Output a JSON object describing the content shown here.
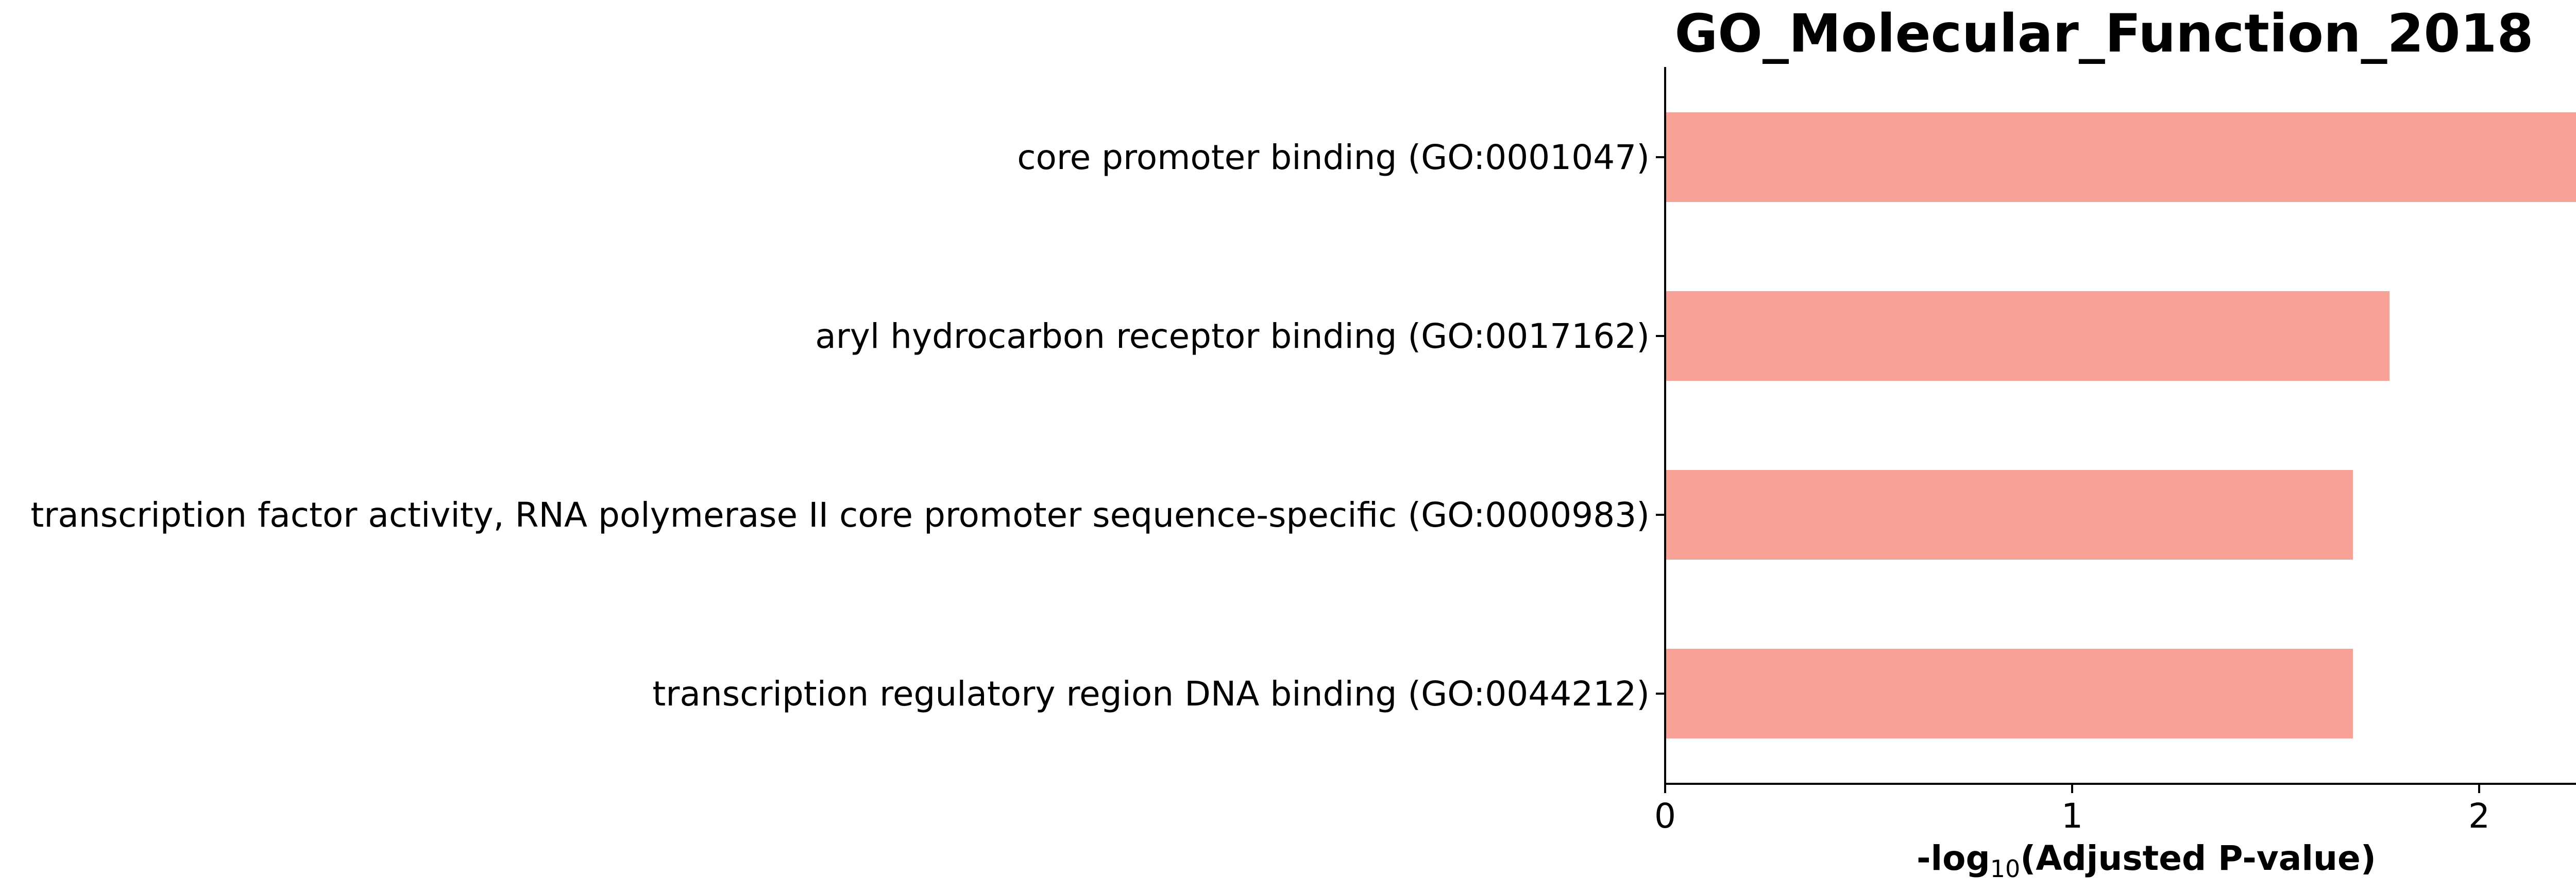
{
  "chart_data": {
    "type": "bar",
    "orientation": "horizontal",
    "title": "GO_Molecular_Function_2018",
    "xlabel": {
      "prefix": "-log",
      "subscript": "10",
      "suffix": "(Adjusted P-value)"
    },
    "ylabel": "",
    "categories": [
      "core promoter binding (GO:0001047)",
      "aryl hydrocarbon receptor binding (GO:0017162)",
      "transcription factor activity, RNA polymerase II core promoter sequence-specific (GO:0000983)",
      "transcription regulatory region DNA binding (GO:0044212)"
    ],
    "values": [
      2.25,
      1.78,
      1.69,
      1.69
    ],
    "xlim": [
      0,
      2.36
    ],
    "xticks": [
      0,
      1,
      2
    ],
    "bar_color": "#f8a197",
    "grid": false,
    "legend": "none"
  }
}
